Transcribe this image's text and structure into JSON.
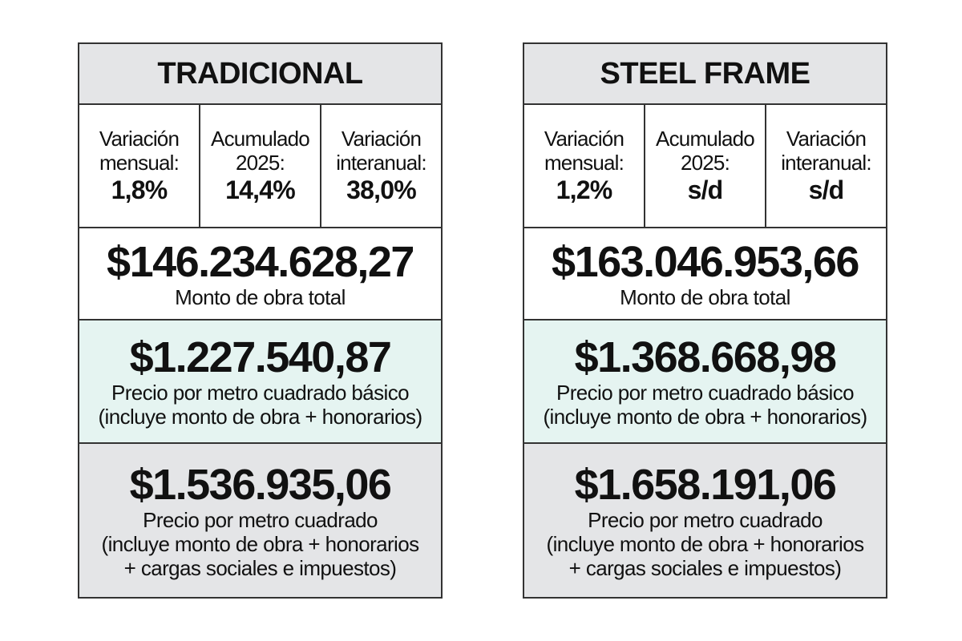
{
  "panels": [
    {
      "title": "TRADICIONAL",
      "stats": [
        {
          "label_lines": [
            "Variación",
            "mensual:"
          ],
          "value": "1,8%"
        },
        {
          "label_lines": [
            "Acumulado",
            "2025:"
          ],
          "value": "14,4%"
        },
        {
          "label_lines": [
            "Variación",
            "interanual:"
          ],
          "value": "38,0%"
        }
      ],
      "total": {
        "amount": "$146.234.628,27",
        "label_lines": [
          "Monto de obra total"
        ]
      },
      "basic": {
        "amount": "$1.227.540,87",
        "label_lines": [
          "Precio por metro cuadrado básico",
          "(incluye monto de obra + honorarios)"
        ]
      },
      "full": {
        "amount": "$1.536.935,06",
        "label_lines": [
          "Precio por metro cuadrado",
          "(incluye monto de obra + honorarios",
          "+ cargas sociales e impuestos)"
        ]
      }
    },
    {
      "title": "STEEL FRAME",
      "stats": [
        {
          "label_lines": [
            "Variación",
            "mensual:"
          ],
          "value": "1,2%"
        },
        {
          "label_lines": [
            "Acumulado",
            "2025:"
          ],
          "value": "s/d"
        },
        {
          "label_lines": [
            "Variación",
            "interanual:"
          ],
          "value": "s/d"
        }
      ],
      "total": {
        "amount": "$163.046.953,66",
        "label_lines": [
          "Monto de obra total"
        ]
      },
      "basic": {
        "amount": "$1.368.668,98",
        "label_lines": [
          "Precio por metro cuadrado básico",
          "(incluye monto de obra + honorarios)"
        ]
      },
      "full": {
        "amount": "$1.658.191,06",
        "label_lines": [
          "Precio por metro cuadrado",
          "(incluye monto de obra + honorarios",
          "+ cargas sociales e impuestos)"
        ]
      }
    }
  ]
}
